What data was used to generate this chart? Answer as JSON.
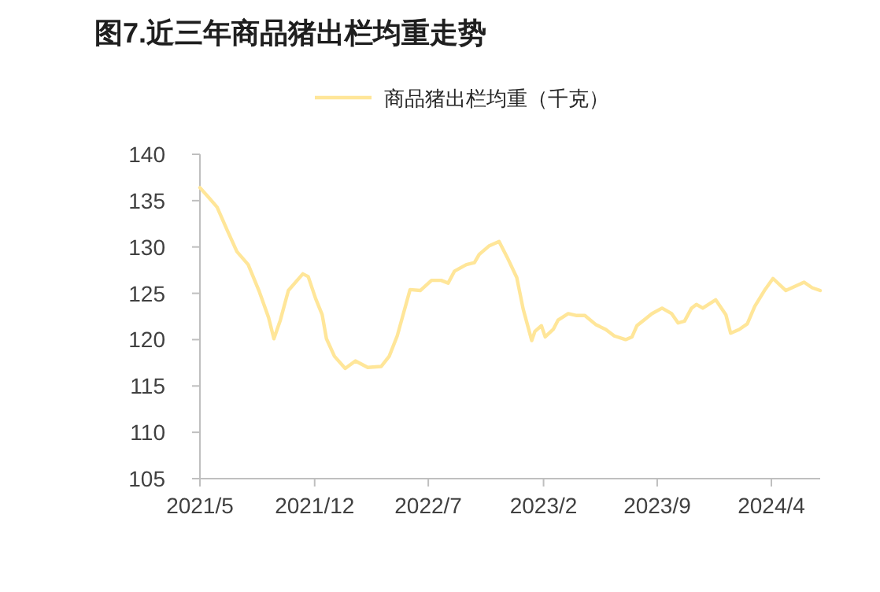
{
  "chart_data": {
    "type": "line",
    "title": "图7.近三年商品猪出栏均重走势",
    "legend": "top",
    "grid": false,
    "marker": "none",
    "line_style": "solid",
    "xlim": [
      "2021-05",
      "2024-07"
    ],
    "xticks": [
      {
        "value": "2021-05",
        "label": "2021/5"
      },
      {
        "value": "2021-12",
        "label": "2021/12"
      },
      {
        "value": "2022-07",
        "label": "2022/7"
      },
      {
        "value": "2023-02",
        "label": "2023/2"
      },
      {
        "value": "2023-09",
        "label": "2023/9"
      },
      {
        "value": "2024-04",
        "label": "2024/4"
      }
    ],
    "ylim": [
      105,
      140
    ],
    "yticks": [
      105,
      110,
      115,
      120,
      125,
      130,
      135,
      140
    ],
    "x": [
      "2021-05-01",
      "2021-05-15",
      "2021-06-02",
      "2021-06-21",
      "2021-07-09",
      "2021-07-30",
      "2021-08-19",
      "2021-09-06",
      "2021-09-16",
      "2021-09-28",
      "2021-10-13",
      "2021-11-09",
      "2021-11-19",
      "2021-12-03",
      "2021-12-15",
      "2021-12-23",
      "2022-01-07",
      "2022-01-27",
      "2022-02-15",
      "2022-03-10",
      "2022-04-04",
      "2022-04-19",
      "2022-05-04",
      "2022-05-28",
      "2022-06-16",
      "2022-07-07",
      "2022-07-25",
      "2022-08-07",
      "2022-08-19",
      "2022-09-10",
      "2022-09-25",
      "2022-10-04",
      "2022-10-22",
      "2022-11-10",
      "2022-11-25",
      "2022-12-13",
      "2022-12-25",
      "2023-01-10",
      "2023-01-16",
      "2023-01-28",
      "2023-02-04",
      "2023-02-19",
      "2023-02-28",
      "2023-03-19",
      "2023-04-04",
      "2023-04-19",
      "2023-05-10",
      "2023-05-28",
      "2023-06-13",
      "2023-07-04",
      "2023-07-16",
      "2023-07-25",
      "2023-08-07",
      "2023-08-22",
      "2023-09-10",
      "2023-09-28",
      "2023-10-10",
      "2023-10-22",
      "2023-11-04",
      "2023-11-13",
      "2023-11-25",
      "2023-12-19",
      "2024-01-07",
      "2024-01-16",
      "2024-02-01",
      "2024-02-16",
      "2024-03-01",
      "2024-03-19",
      "2024-04-04",
      "2024-04-28",
      "2024-06-01",
      "2024-06-16",
      "2024-07-01"
    ],
    "series": [
      {
        "name": "商品猪出栏均重（千克）",
        "color": "#ffe699",
        "values": [
          136.4,
          135.5,
          134.3,
          131.8,
          129.5,
          128.1,
          125.3,
          122.4,
          120.1,
          122.1,
          125.3,
          127.1,
          126.8,
          124.4,
          122.7,
          120.1,
          118.2,
          116.9,
          117.7,
          117.0,
          117.1,
          118.2,
          120.4,
          125.4,
          125.3,
          126.4,
          126.4,
          126.1,
          127.4,
          128.1,
          128.3,
          129.2,
          130.1,
          130.6,
          128.9,
          126.7,
          123.3,
          119.9,
          120.9,
          121.5,
          120.3,
          121.1,
          122.1,
          122.8,
          122.6,
          122.6,
          121.6,
          121.1,
          120.4,
          120.0,
          120.3,
          121.5,
          122.1,
          122.8,
          123.4,
          122.8,
          121.8,
          122.0,
          123.4,
          123.8,
          123.4,
          124.3,
          122.7,
          120.7,
          121.1,
          121.7,
          123.6,
          125.3,
          126.6,
          125.3,
          126.2,
          125.6,
          125.3
        ]
      }
    ]
  }
}
